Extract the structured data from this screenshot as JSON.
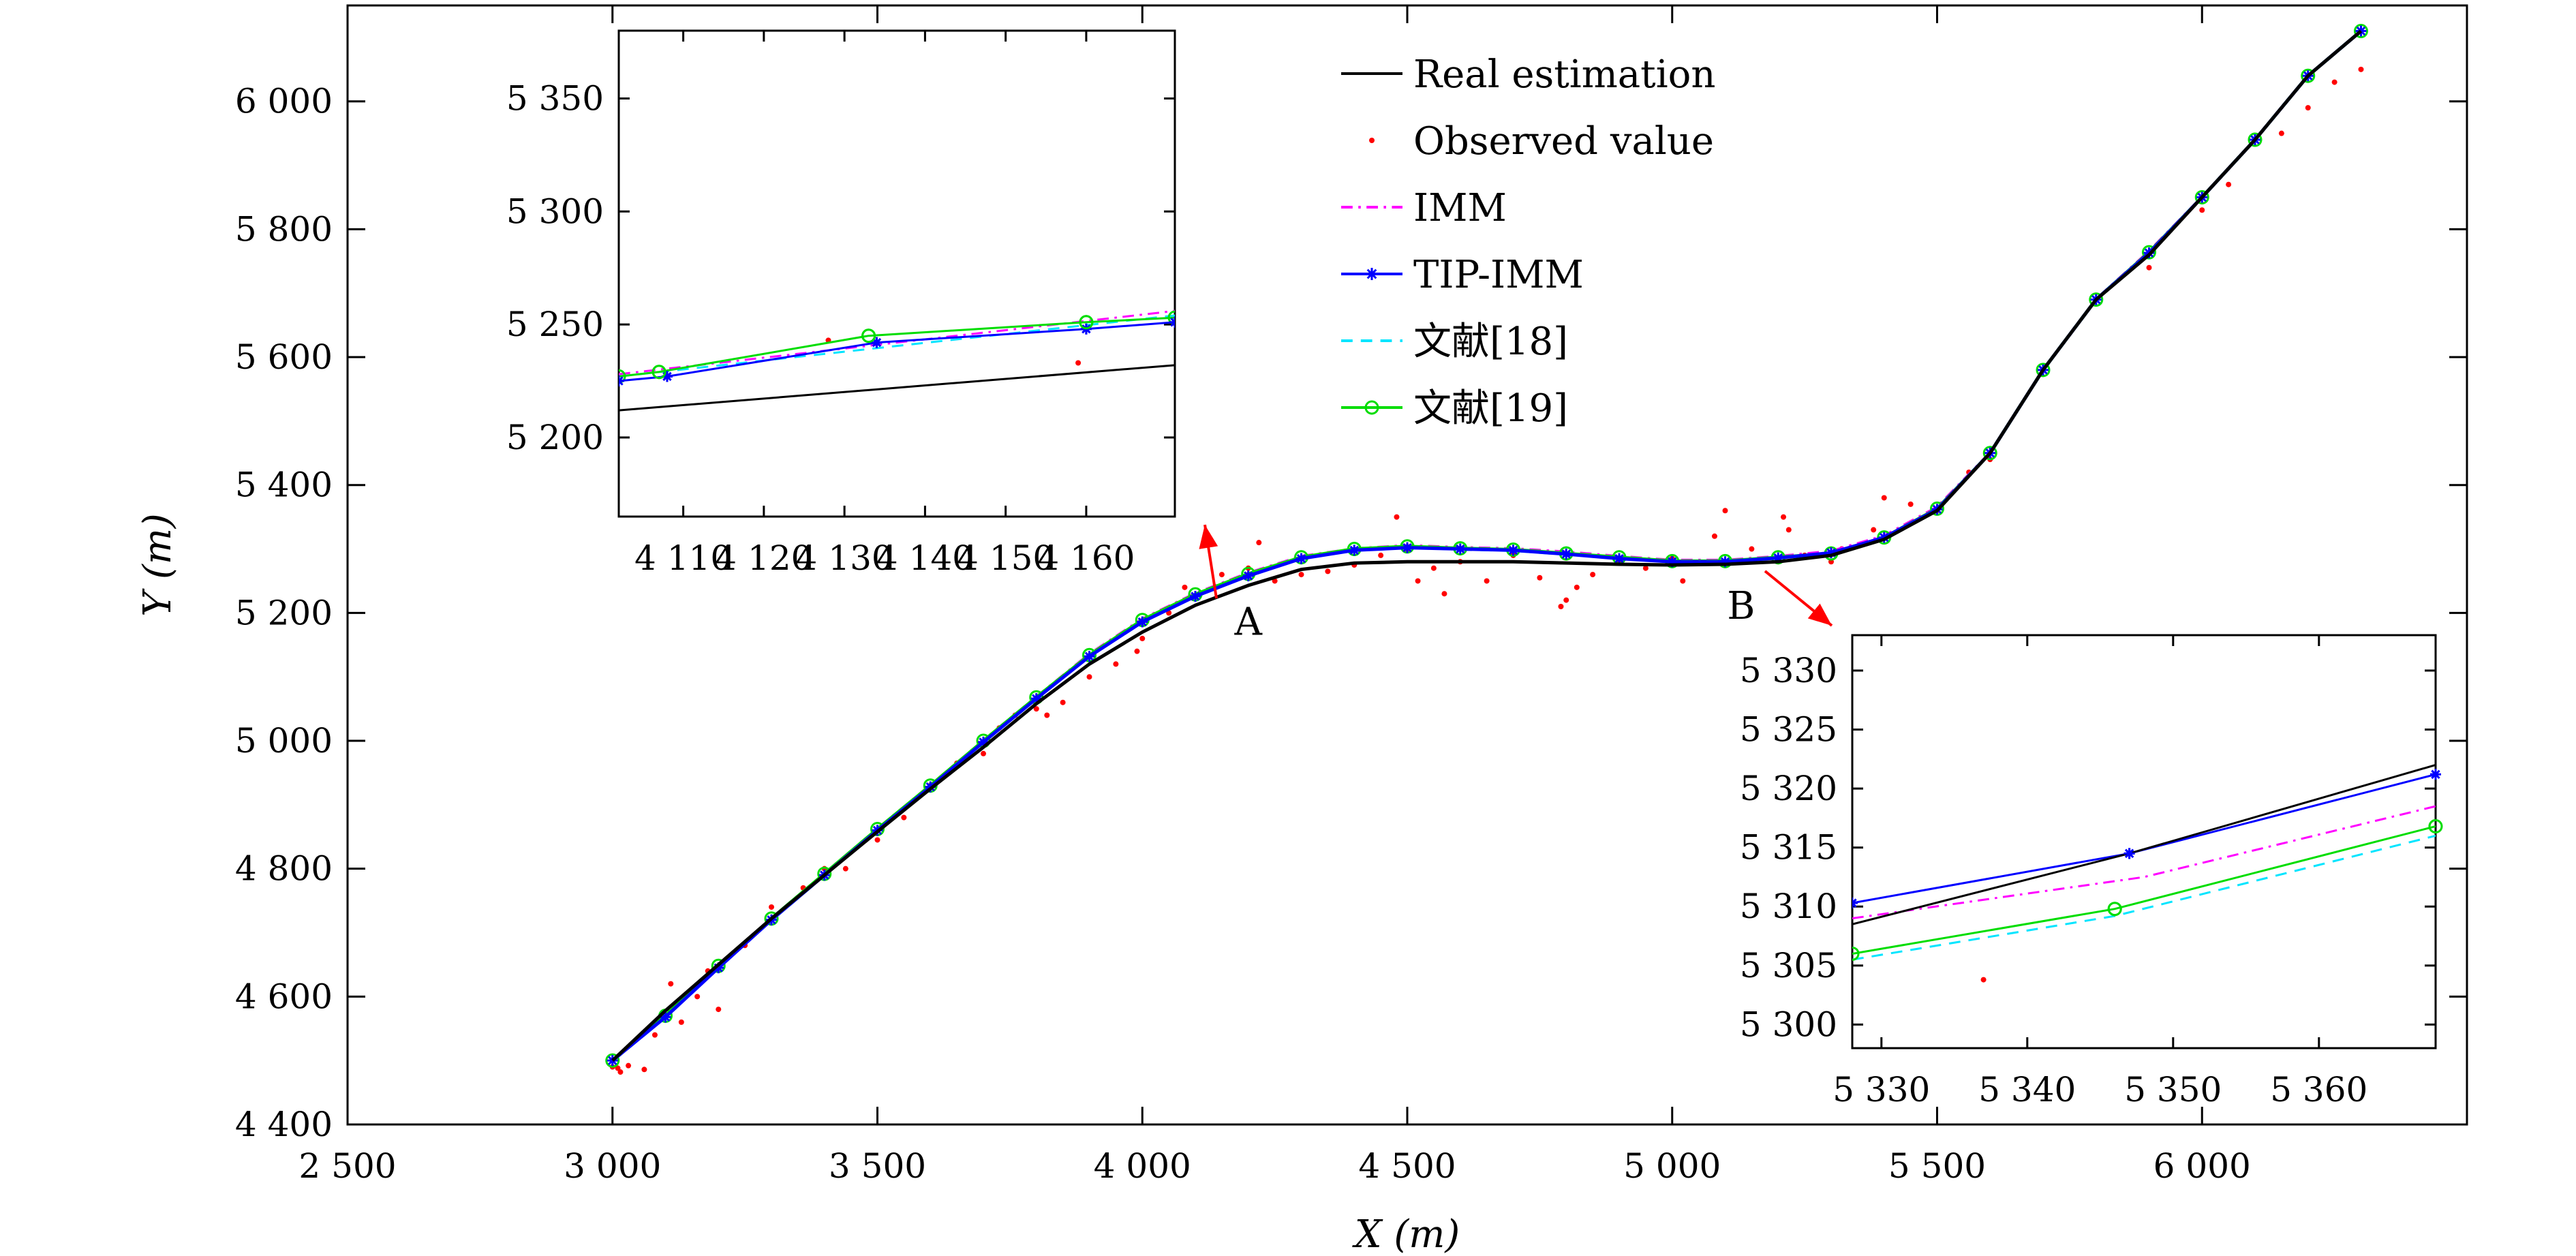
{
  "chart_data": [
    {
      "type": "line",
      "role": "main",
      "xlabel": "X (m)",
      "ylabel": "Y (m)",
      "xlim": [
        2500,
        6500
      ],
      "ylim": [
        4400,
        6150
      ],
      "x_ticks": [
        2500,
        3000,
        3500,
        4000,
        4500,
        5000,
        5500,
        6000
      ],
      "x_tick_labels": [
        "2 500",
        "3 000",
        "3 500",
        "4 000",
        "4 500",
        "5 000",
        "5 500",
        "6 000"
      ],
      "y_ticks": [
        4400,
        4600,
        4800,
        5000,
        5200,
        5400,
        5600,
        5800,
        6000
      ],
      "y_tick_labels": [
        "4 400",
        "4 600",
        "4 800",
        "5 000",
        "5 200",
        "5 400",
        "5 600",
        "5 800",
        "6 000"
      ],
      "grid": false,
      "legend_position": "top-center",
      "series": [
        {
          "name": "Real estimation",
          "color": "#000000",
          "style": "solid",
          "x": [
            3000,
            3100,
            3200,
            3300,
            3400,
            3500,
            3600,
            3700,
            3800,
            3900,
            4000,
            4100,
            4200,
            4300,
            4400,
            4500,
            4600,
            4700,
            4800,
            4900,
            5000,
            5100,
            5200,
            5300,
            5400,
            5500,
            5600,
            5700,
            5800,
            5900,
            6000,
            6100,
            6200,
            6300
          ],
          "y": [
            4500,
            4578,
            4650,
            4722,
            4790,
            4858,
            4925,
            4990,
            5058,
            5120,
            5170,
            5212,
            5243,
            5268,
            5278,
            5280,
            5280,
            5280,
            5278,
            5276,
            5275,
            5276,
            5280,
            5290,
            5315,
            5360,
            5450,
            5580,
            5690,
            5760,
            5850,
            5940,
            6040,
            6110
          ]
        },
        {
          "name": "Observed value",
          "color": "#ff0000",
          "style": "points",
          "x": [
            3000,
            3010,
            3015,
            3030,
            3060,
            3080,
            3110,
            3130,
            3160,
            3180,
            3200,
            3250,
            3300,
            3360,
            3400,
            3440,
            3500,
            3550,
            3600,
            3650,
            3700,
            3730,
            3760,
            3800,
            3820,
            3850,
            3900,
            3950,
            3990,
            4000,
            4050,
            4080,
            4150,
            4200,
            4220,
            4250,
            4300,
            4350,
            4400,
            4450,
            4480,
            4500,
            4520,
            4550,
            4570,
            4600,
            4650,
            4700,
            4750,
            4790,
            4800,
            4820,
            4850,
            4900,
            4950,
            5000,
            5020,
            5080,
            5100,
            5150,
            5200,
            5210,
            5220,
            5250,
            5300,
            5320,
            5380,
            5400,
            5450,
            5500,
            5560,
            5600,
            5700,
            5800,
            5900,
            6000,
            6050,
            6150,
            6200,
            6250,
            6300
          ],
          "y": [
            4490,
            4488,
            4482,
            4492,
            4486,
            4540,
            4620,
            4560,
            4600,
            4640,
            4580,
            4680,
            4740,
            4770,
            4800,
            4800,
            4845,
            4880,
            4930,
            4965,
            4980,
            5020,
            5040,
            5050,
            5040,
            5060,
            5100,
            5120,
            5140,
            5160,
            5200,
            5240,
            5260,
            5270,
            5310,
            5250,
            5260,
            5265,
            5275,
            5290,
            5350,
            5300,
            5250,
            5270,
            5230,
            5280,
            5250,
            5290,
            5255,
            5210,
            5220,
            5240,
            5260,
            5280,
            5270,
            5285,
            5250,
            5320,
            5360,
            5300,
            5280,
            5350,
            5330,
            5290,
            5280,
            5300,
            5330,
            5380,
            5370,
            5360,
            5420,
            5440,
            5580,
            5690,
            5740,
            5830,
            5870,
            5950,
            5990,
            6030,
            6050
          ]
        },
        {
          "name": "IMM",
          "color": "#ff00ff",
          "style": "dash-dot",
          "x": [
            3000,
            3100,
            3200,
            3300,
            3400,
            3500,
            3600,
            3700,
            3800,
            3900,
            4000,
            4100,
            4200,
            4300,
            4400,
            4500,
            4600,
            4700,
            4800,
            4900,
            5000,
            5100,
            5200,
            5300,
            5400,
            5500,
            5600,
            5700,
            5800,
            5900,
            6000,
            6100,
            6200,
            6300
          ],
          "y": [
            4500,
            4570,
            4648,
            4722,
            4792,
            4862,
            4930,
            5000,
            5068,
            5135,
            5190,
            5230,
            5262,
            5288,
            5300,
            5305,
            5302,
            5300,
            5295,
            5288,
            5282,
            5282,
            5288,
            5296,
            5320,
            5365,
            5450,
            5580,
            5690,
            5765,
            5850,
            5940,
            6040,
            6110
          ]
        },
        {
          "name": "TIP-IMM",
          "color": "#0000ff",
          "style": "solid-star",
          "x": [
            3000,
            3100,
            3200,
            3300,
            3400,
            3500,
            3600,
            3700,
            3800,
            3900,
            4000,
            4100,
            4200,
            4300,
            4400,
            4500,
            4600,
            4700,
            4800,
            4900,
            5000,
            5100,
            5200,
            5300,
            5400,
            5500,
            5600,
            5700,
            5800,
            5900,
            6000,
            6100,
            6200,
            6300
          ],
          "y": [
            4500,
            4568,
            4645,
            4720,
            4790,
            4860,
            4928,
            4998,
            5066,
            5132,
            5186,
            5226,
            5258,
            5285,
            5298,
            5302,
            5300,
            5298,
            5292,
            5285,
            5280,
            5280,
            5286,
            5294,
            5318,
            5362,
            5450,
            5580,
            5690,
            5763,
            5850,
            5940,
            6040,
            6110
          ]
        },
        {
          "name": "文献[18]",
          "color": "#00e5ff",
          "style": "dashed",
          "x": [
            3000,
            3100,
            3200,
            3300,
            3400,
            3500,
            3600,
            3700,
            3800,
            3900,
            4000,
            4100,
            4200,
            4300,
            4400,
            4500,
            4600,
            4700,
            4800,
            4900,
            5000,
            5100,
            5200,
            5300,
            5400,
            5500,
            5600,
            5700,
            5800,
            5900,
            6000,
            6100,
            6200,
            6300
          ],
          "y": [
            4500,
            4568,
            4646,
            4720,
            4790,
            4860,
            4928,
            4998,
            5066,
            5134,
            5188,
            5228,
            5260,
            5286,
            5299,
            5303,
            5300,
            5298,
            5292,
            5286,
            5280,
            5280,
            5286,
            5292,
            5316,
            5362,
            5450,
            5580,
            5690,
            5763,
            5850,
            5940,
            6040,
            6110
          ]
        },
        {
          "name": "文献[19]",
          "color": "#00dd00",
          "style": "solid-circle",
          "x": [
            3000,
            3100,
            3200,
            3300,
            3400,
            3500,
            3600,
            3700,
            3800,
            3900,
            4000,
            4100,
            4200,
            4300,
            4400,
            4500,
            4600,
            4700,
            4800,
            4900,
            5000,
            5100,
            5200,
            5300,
            5400,
            5500,
            5600,
            5700,
            5800,
            5900,
            6000,
            6100,
            6200,
            6300
          ],
          "y": [
            4500,
            4570,
            4648,
            4722,
            4792,
            4862,
            4930,
            5000,
            5068,
            5134,
            5189,
            5229,
            5261,
            5287,
            5300,
            5304,
            5301,
            5299,
            5293,
            5287,
            5281,
            5281,
            5287,
            5293,
            5318,
            5363,
            5450,
            5580,
            5690,
            5764,
            5850,
            5940,
            6040,
            6110
          ]
        }
      ],
      "annotations": [
        {
          "text": "A",
          "x": 4200,
          "y": 5185
        },
        {
          "text": "B",
          "x": 5130,
          "y": 5210
        }
      ]
    },
    {
      "type": "line",
      "role": "inset-A",
      "xlim": [
        4102,
        4171
      ],
      "ylim": [
        5165,
        5380
      ],
      "x_ticks": [
        4110,
        4120,
        4130,
        4140,
        4150,
        4160
      ],
      "x_tick_labels": [
        "4 110",
        "4 120",
        "4 130",
        "4 140",
        "4 150",
        "4 160"
      ],
      "y_ticks": [
        5200,
        5250,
        5300,
        5350
      ],
      "y_tick_labels": [
        "5 200",
        "5 250",
        "5 300",
        "5 350"
      ],
      "series": [
        {
          "name": "Real estimation",
          "x": [
            4102,
            4171
          ],
          "y": [
            5212,
            5232
          ]
        },
        {
          "name": "IMM",
          "x": [
            4102,
            4171
          ],
          "y": [
            5228,
            5256
          ]
        },
        {
          "name": "TIP-IMM",
          "x": [
            4102,
            4108,
            4134,
            4160,
            4171
          ],
          "y": [
            5225,
            5227,
            5242,
            5248,
            5251
          ]
        },
        {
          "name": "文献[18]",
          "x": [
            4102,
            4171
          ],
          "y": [
            5227,
            5254
          ]
        },
        {
          "name": "文献[19]",
          "x": [
            4102,
            4107,
            4133,
            4160,
            4171
          ],
          "y": [
            5227,
            5229,
            5245,
            5251,
            5253
          ]
        },
        {
          "name": "Observed value",
          "x": [
            4128,
            4159
          ],
          "y": [
            5243,
            5233
          ]
        }
      ]
    },
    {
      "type": "line",
      "role": "inset-B",
      "xlim": [
        5328,
        5368
      ],
      "ylim": [
        5298,
        5333
      ],
      "x_ticks": [
        5330,
        5340,
        5350,
        5360
      ],
      "x_tick_labels": [
        "5 330",
        "5 340",
        "5 350",
        "5 360"
      ],
      "y_ticks": [
        5300,
        5305,
        5310,
        5315,
        5320,
        5325,
        5330
      ],
      "y_tick_labels": [
        "5 300",
        "5 305",
        "5 310",
        "5 315",
        "5 320",
        "5 325",
        "5 330"
      ],
      "series": [
        {
          "name": "Real estimation",
          "x": [
            5328,
            5347,
            5368
          ],
          "y": [
            5308.5,
            5314.5,
            5322
          ]
        },
        {
          "name": "IMM",
          "x": [
            5328,
            5348,
            5368
          ],
          "y": [
            5309,
            5312.5,
            5318.5
          ]
        },
        {
          "name": "TIP-IMM",
          "x": [
            5328,
            5347,
            5368
          ],
          "y": [
            5310.3,
            5314.5,
            5321.2
          ]
        },
        {
          "name": "文献[18]",
          "x": [
            5328,
            5346,
            5368
          ],
          "y": [
            5305.5,
            5309.2,
            5316
          ]
        },
        {
          "name": "文献[19]",
          "x": [
            5328,
            5346,
            5368
          ],
          "y": [
            5306,
            5309.8,
            5316.8
          ]
        },
        {
          "name": "Observed value",
          "x": [
            5337
          ],
          "y": [
            5303.8
          ]
        }
      ]
    }
  ]
}
